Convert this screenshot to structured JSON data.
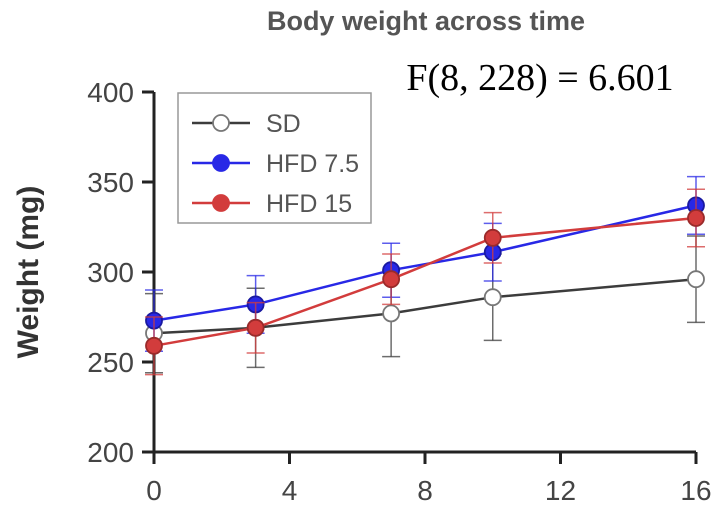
{
  "chart_data": {
    "type": "line",
    "title": "Body weight across time",
    "annotation": "F(8, 228) = 6.601",
    "xlabel": "",
    "ylabel": "Weight (mg)",
    "xlim": [
      0,
      16
    ],
    "ylim": [
      200,
      400
    ],
    "xticks": [
      0,
      4,
      8,
      12,
      16
    ],
    "yticks": [
      200,
      250,
      300,
      350,
      400
    ],
    "x": [
      0,
      3,
      7,
      10,
      16
    ],
    "legend_position": "top-left",
    "series": [
      {
        "name": "SD",
        "color": "#3c3c3c",
        "marker": "open-circle",
        "values": [
          266,
          269,
          277,
          286,
          296
        ],
        "errors": [
          22,
          22,
          24,
          24,
          24
        ]
      },
      {
        "name": "HFD 7.5",
        "color": "#2828e6",
        "marker": "filled-circle",
        "values": [
          273,
          282,
          301,
          311,
          337
        ],
        "errors": [
          17,
          16,
          15,
          16,
          16
        ]
      },
      {
        "name": "HFD 15",
        "color": "#d23c3c",
        "marker": "filled-circle",
        "values": [
          259,
          269,
          296,
          319,
          330
        ],
        "errors": [
          16,
          14,
          14,
          14,
          16
        ]
      }
    ]
  }
}
